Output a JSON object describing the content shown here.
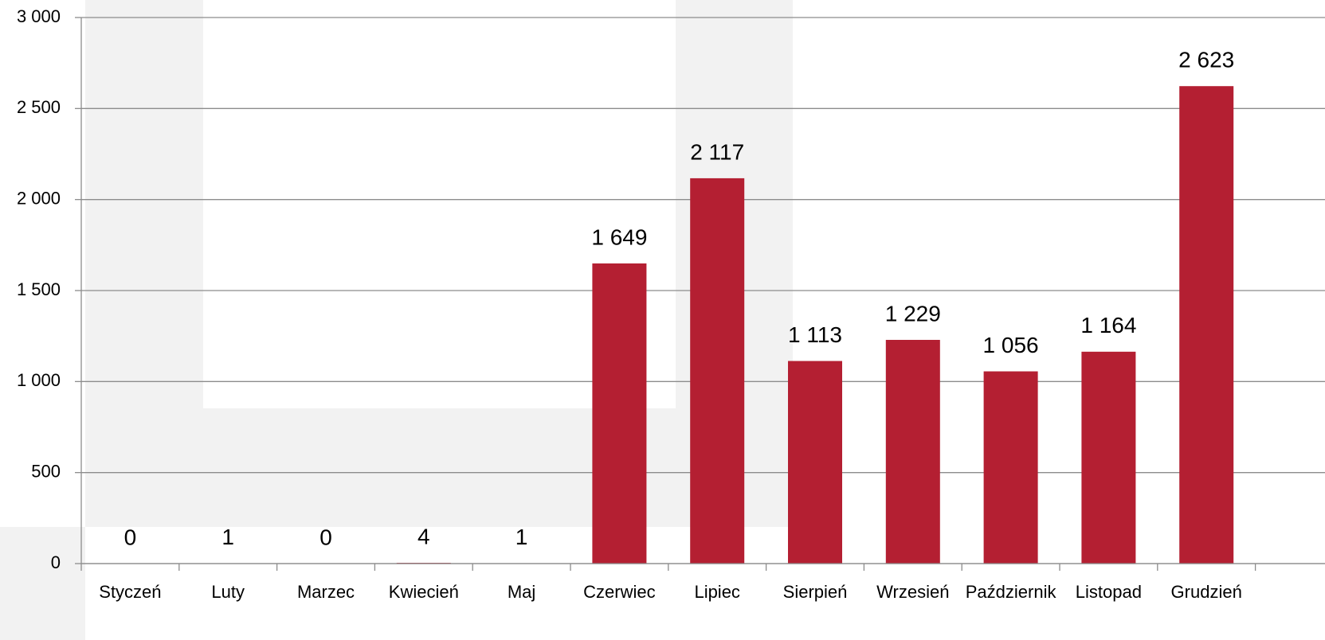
{
  "chart_data": {
    "type": "bar",
    "categories": [
      "Styczeń",
      "Luty",
      "Marzec",
      "Kwiecień",
      "Maj",
      "Czerwiec",
      "Lipiec",
      "Sierpień",
      "Wrzesień",
      "Październik",
      "Listopad",
      "Grudzień"
    ],
    "values": [
      0,
      1,
      0,
      4,
      1,
      1649,
      2117,
      1113,
      1229,
      1056,
      1164,
      2623
    ],
    "value_labels": [
      "0",
      "1",
      "0",
      "4",
      "1",
      "1 649",
      "2 117",
      "1 113",
      "1 229",
      "1 056",
      "1 164",
      "2 623"
    ],
    "color": "#b41f32",
    "ylim": [
      0,
      3000
    ],
    "yticks": [
      0,
      500,
      {
        "value": 1000,
        "label": "1 000"
      },
      {
        "value": 1500,
        "label": "1 500"
      },
      {
        "value": 2000,
        "label": "2 000"
      },
      {
        "value": 2500,
        "label": "2 500"
      },
      {
        "value": 3000,
        "label": "3 000"
      }
    ],
    "grid": true
  }
}
